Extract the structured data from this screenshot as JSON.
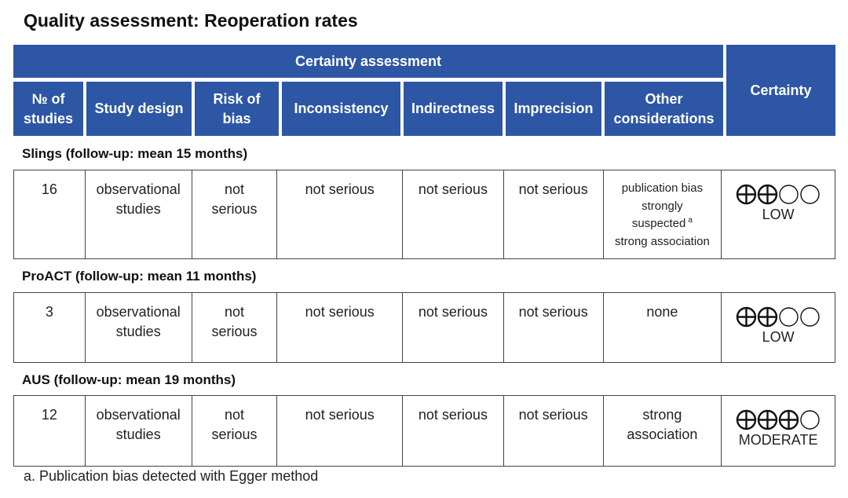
{
  "title": "Quality assessment: Reoperation rates",
  "header": {
    "group_label": "Certainty assessment",
    "certainty_label": "Certainty",
    "columns": [
      "№ of studies",
      "Study design",
      "Risk of bias",
      "Inconsistency",
      "Indirectness",
      "Imprecision",
      "Other considerations"
    ]
  },
  "colors": {
    "header_bg": "#2d56a5",
    "header_text": "#ffffff",
    "border": "#444444"
  },
  "sections": [
    {
      "label": "Slings (follow-up: mean 15 months)",
      "row": {
        "num_studies": "16",
        "design": "observational studies",
        "risk_of_bias": "not serious",
        "inconsistency": "not serious",
        "indirectness": "not serious",
        "imprecision": "not serious",
        "other": "publication bias strongly suspected",
        "other_footnote": "a",
        "other_extra": "strong association",
        "certainty_filled": 2,
        "certainty_total": 4,
        "certainty_label": "LOW"
      }
    },
    {
      "label": "ProACT (follow-up: mean 11 months)",
      "row": {
        "num_studies": "3",
        "design": "observational studies",
        "risk_of_bias": "not serious",
        "inconsistency": "not serious",
        "indirectness": "not serious",
        "imprecision": "not serious",
        "other": "none",
        "certainty_filled": 2,
        "certainty_total": 4,
        "certainty_label": "LOW"
      }
    },
    {
      "label": "AUS (follow-up: mean 19 months)",
      "row": {
        "num_studies": "12",
        "design": "observational studies",
        "risk_of_bias": "not serious",
        "inconsistency": "not serious",
        "indirectness": "not serious",
        "imprecision": "not serious",
        "other": "strong association",
        "certainty_filled": 3,
        "certainty_total": 4,
        "certainty_label": "MODERATE"
      }
    }
  ],
  "footnote": "a. Publication bias detected with Egger method"
}
